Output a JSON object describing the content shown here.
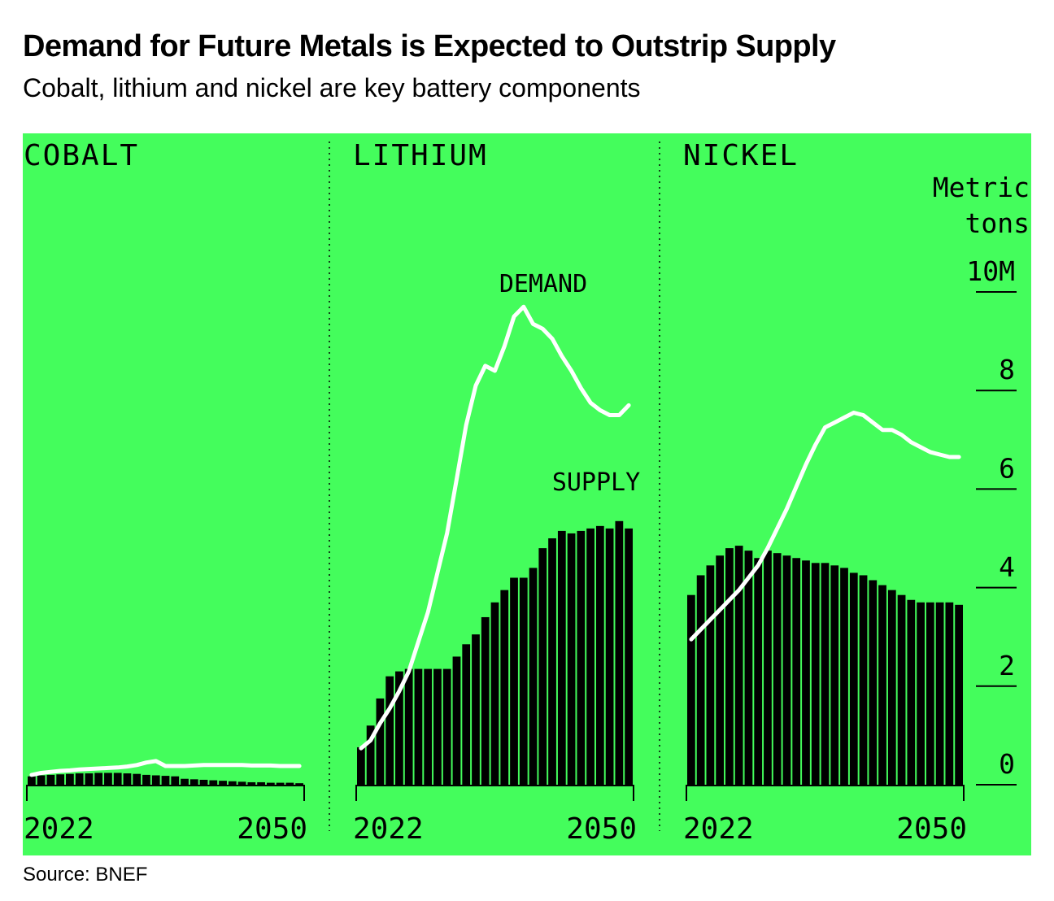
{
  "title": "Demand for Future Metals is Expected to Outstrip Supply",
  "subtitle": "Cobalt, lithium and nickel are key battery components",
  "source": "Source: BNEF",
  "colors": {
    "panel_bg": "#44fd5c",
    "bars": "#000000",
    "demand_line": "#ffffff"
  },
  "chart_data": {
    "type": "bar+line",
    "unit_label": [
      "Metric",
      "tons"
    ],
    "ylim": [
      0,
      10
    ],
    "y_ticks": [
      {
        "value": 10,
        "label": "10M"
      },
      {
        "value": 8,
        "label": "8"
      },
      {
        "value": 6,
        "label": "6"
      },
      {
        "value": 4,
        "label": "4"
      },
      {
        "value": 2,
        "label": "2"
      },
      {
        "value": 0,
        "label": "0"
      }
    ],
    "x_tick_labels": [
      "2022",
      "2050"
    ],
    "annotations": {
      "demand": "DEMAND",
      "supply": "SUPPLY"
    },
    "panels": [
      {
        "name": "COBALT",
        "years": [
          2022,
          2050
        ],
        "supply": [
          0.17,
          0.19,
          0.2,
          0.21,
          0.22,
          0.23,
          0.23,
          0.24,
          0.24,
          0.24,
          0.23,
          0.22,
          0.2,
          0.19,
          0.18,
          0.17,
          0.12,
          0.11,
          0.1,
          0.09,
          0.08,
          0.07,
          0.06,
          0.05,
          0.05,
          0.04,
          0.04,
          0.04,
          0.03
        ],
        "demand": [
          0.2,
          0.24,
          0.26,
          0.28,
          0.29,
          0.31,
          0.32,
          0.33,
          0.34,
          0.35,
          0.37,
          0.4,
          0.45,
          0.48,
          0.38,
          0.38,
          0.38,
          0.39,
          0.4,
          0.4,
          0.4,
          0.4,
          0.4,
          0.39,
          0.39,
          0.39,
          0.38,
          0.38,
          0.38
        ]
      },
      {
        "name": "LITHIUM",
        "years": [
          2022,
          2050
        ],
        "supply": [
          0.76,
          1.2,
          1.75,
          2.2,
          2.3,
          2.35,
          2.35,
          2.35,
          2.35,
          2.35,
          2.6,
          2.85,
          3.05,
          3.4,
          3.7,
          3.95,
          4.2,
          4.2,
          4.4,
          4.8,
          5.0,
          5.15,
          5.1,
          5.15,
          5.2,
          5.25,
          5.2,
          5.35,
          5.2
        ],
        "demand": [
          0.74,
          0.9,
          1.25,
          1.55,
          1.9,
          2.3,
          2.9,
          3.5,
          4.3,
          5.1,
          6.2,
          7.3,
          8.1,
          8.5,
          8.4,
          8.9,
          9.5,
          9.7,
          9.35,
          9.25,
          9.05,
          8.7,
          8.4,
          8.05,
          7.75,
          7.6,
          7.5,
          7.5,
          7.7
        ]
      },
      {
        "name": "NICKEL",
        "years": [
          2022,
          2050
        ],
        "supply": [
          3.85,
          4.25,
          4.45,
          4.65,
          4.8,
          4.85,
          4.75,
          4.6,
          4.75,
          4.7,
          4.65,
          4.6,
          4.55,
          4.5,
          4.5,
          4.45,
          4.4,
          4.3,
          4.25,
          4.15,
          4.05,
          3.95,
          3.85,
          3.75,
          3.7,
          3.7,
          3.7,
          3.7,
          3.65
        ],
        "demand": [
          2.95,
          3.15,
          3.35,
          3.55,
          3.75,
          3.95,
          4.2,
          4.45,
          4.8,
          5.2,
          5.6,
          6.05,
          6.5,
          6.9,
          7.25,
          7.35,
          7.45,
          7.55,
          7.5,
          7.35,
          7.2,
          7.2,
          7.1,
          6.95,
          6.85,
          6.75,
          6.7,
          6.65,
          6.65
        ]
      }
    ]
  }
}
